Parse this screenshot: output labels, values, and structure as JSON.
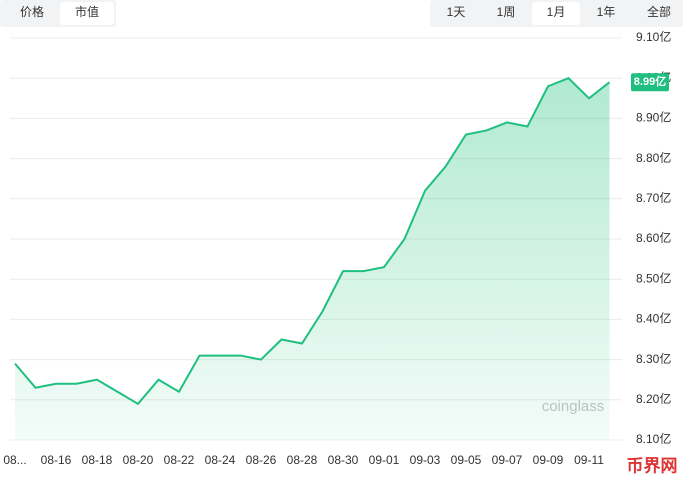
{
  "ui": {
    "tabs_left": [
      "价格",
      "市值"
    ],
    "tabs_right": [
      "1天",
      "1周",
      "1月",
      "1年",
      "全部"
    ],
    "watermark": "coinglass",
    "corner_mark": "币界网"
  },
  "chart_data": {
    "type": "area",
    "x": [
      "08-14",
      "08-15",
      "08-16",
      "08-17",
      "08-18",
      "08-19",
      "08-20",
      "08-21",
      "08-22",
      "08-23",
      "08-24",
      "08-25",
      "08-26",
      "08-27",
      "08-28",
      "08-29",
      "08-30",
      "08-31",
      "09-01",
      "09-02",
      "09-03",
      "09-04",
      "09-05",
      "09-06",
      "09-07",
      "09-08",
      "09-09",
      "09-10",
      "09-11",
      "09-12"
    ],
    "series": [
      {
        "color": "#1fc07f",
        "values": [
          8.29,
          8.23,
          8.24,
          8.24,
          8.25,
          8.22,
          8.19,
          8.25,
          8.22,
          8.31,
          8.31,
          8.31,
          8.3,
          8.35,
          8.34,
          8.42,
          8.52,
          8.52,
          8.53,
          8.6,
          8.72,
          8.78,
          8.86,
          8.87,
          8.89,
          8.88,
          8.98,
          9.0,
          8.95,
          8.99
        ],
        "value_labels": [
          null,
          null,
          null,
          null,
          null,
          null,
          null,
          null,
          null,
          null,
          null,
          null,
          null,
          null,
          null,
          null,
          null,
          null,
          null,
          null,
          null,
          null,
          null,
          null,
          null,
          null,
          null,
          null,
          null,
          "8.99亿"
        ]
      }
    ],
    "ylim": [
      8.1,
      9.1
    ],
    "yticks": [
      {
        "value": 8.1,
        "label": "8.10亿"
      },
      {
        "value": 8.2,
        "label": "8.20亿"
      },
      {
        "value": 8.3,
        "label": "8.30亿"
      },
      {
        "value": 8.4,
        "label": "8.40亿"
      },
      {
        "value": 8.5,
        "label": "8.50亿"
      },
      {
        "value": 8.6,
        "label": "8.60亿"
      },
      {
        "value": 8.7,
        "label": "8.70亿"
      },
      {
        "value": 8.8,
        "label": "8.80亿"
      },
      {
        "value": 8.9,
        "label": "8.90亿"
      },
      {
        "value": 9.0,
        "label": "9.00亿"
      },
      {
        "value": 9.1,
        "label": "9.10亿"
      }
    ],
    "xticks": [
      {
        "value": "08-14",
        "label": "08..."
      },
      "08-16",
      "08-18",
      "08-20",
      "08-22",
      "08-24",
      "08-26",
      "08-28",
      "08-30",
      "09-01",
      "09-03",
      "09-05",
      "09-07",
      "09-09",
      "09-11"
    ],
    "grid": true
  }
}
